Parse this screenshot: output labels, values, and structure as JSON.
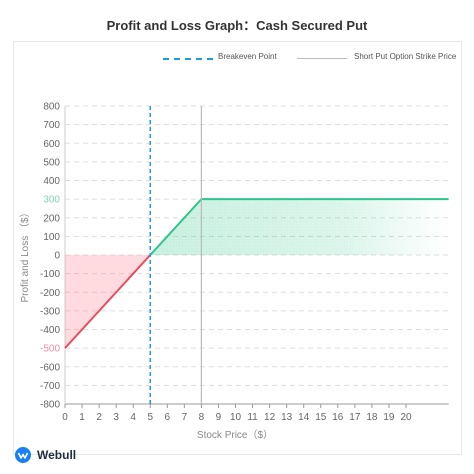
{
  "title": "Profit and Loss Graph：Cash Secured Put",
  "legend": {
    "breakeven_label": "Breakeven Point",
    "strike_label": "Short Put Option Strike Price"
  },
  "brand": "Webull",
  "colors": {
    "profit": "#2ec58a",
    "loss": "#e84b5d",
    "breakeven": "#1a9ed9",
    "strike": "#bbbbbb",
    "grid": "#dddddd",
    "axis_text": "#666666",
    "highlight_tick": "#f08ea0",
    "highlight_tick_pos": "#7fd5b4"
  },
  "chart_data": {
    "type": "line",
    "title": "Profit and Loss Graph：Cash Secured Put",
    "xlabel": "Stock Price（$）",
    "ylabel": "Profit and Loss （$）",
    "x_ticks": [
      0,
      1,
      2,
      3,
      4,
      5,
      6,
      7,
      8,
      9,
      10,
      11,
      12,
      13,
      14,
      15,
      16,
      17,
      18,
      19,
      20
    ],
    "y_ticks": [
      800,
      700,
      600,
      500,
      400,
      300,
      200,
      100,
      0,
      -100,
      -200,
      -300,
      -400,
      -500,
      -600,
      -700,
      -800
    ],
    "xlim": [
      0,
      22.5
    ],
    "ylim": [
      -800,
      800
    ],
    "series": [
      {
        "x": [
          0,
          8,
          22.5
        ],
        "y": [
          -500,
          300,
          300
        ]
      }
    ],
    "breakeven_x": 5,
    "strike_x": 8,
    "max_profit": 300,
    "max_loss_at_zero": -500,
    "grid": true,
    "legend_position": "top-right"
  }
}
